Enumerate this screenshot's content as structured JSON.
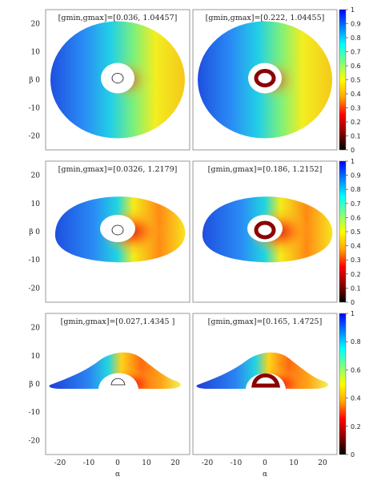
{
  "chart_data": {
    "type": "heatmap",
    "description_free": true,
    "shared_x_axis": {
      "label": "α",
      "ticks": [
        -20,
        -10,
        0,
        10,
        20
      ],
      "range": [
        -25,
        25
      ]
    },
    "shared_y_axis": {
      "label": "β",
      "ticks": [
        20,
        10,
        0,
        -10,
        -20
      ],
      "range": [
        -25,
        25
      ]
    },
    "colormap": [
      "#000000",
      "#8b0000",
      "#ff0000",
      "#ffa500",
      "#ffff00",
      "#7fff7f",
      "#00ffff",
      "#0080ff",
      "#0000ff"
    ],
    "rows": [
      {
        "colorbar_ticks": [
          "1",
          "0.9",
          "0.8",
          "0.7",
          "0.6",
          "0.5",
          "0.4",
          "0.3",
          "0.2",
          "0.1",
          "0"
        ],
        "colorbar_range": [
          0,
          1
        ],
        "panels": [
          {
            "annotation": "[gmin,gmax]=[0.036, 1.04457]",
            "gmin": 0.036,
            "gmax": 1.04457,
            "ring": false
          },
          {
            "annotation": "[gmin,gmax]=[0.222, 1.04455]",
            "gmin": 0.222,
            "gmax": 1.04455,
            "ring": true
          }
        ]
      },
      {
        "colorbar_ticks": [
          "1",
          "0.9",
          "0.8",
          "0.7",
          "0.6",
          "0.5",
          "0.4",
          "0.3",
          "0.2",
          "0.1",
          "0"
        ],
        "colorbar_range": [
          0,
          1
        ],
        "panels": [
          {
            "annotation": "[gmin,gmax]=[0.0326, 1.2179]",
            "gmin": 0.0326,
            "gmax": 1.2179,
            "ring": false
          },
          {
            "annotation": "[gmin,gmax]=[0.186, 1.2152]",
            "gmin": 0.186,
            "gmax": 1.2152,
            "ring": true
          }
        ]
      },
      {
        "colorbar_ticks": [
          "1",
          "0.8",
          "0.6",
          "0.4",
          "0.2",
          "0"
        ],
        "colorbar_range": [
          0,
          1
        ],
        "panels": [
          {
            "annotation": "[gmin,gmax]=[0.027,1.4345 ]",
            "gmin": 0.027,
            "gmax": 1.4345,
            "ring": false
          },
          {
            "annotation": "[gmin,gmax]=[0.165, 1.4725]",
            "gmin": 0.165,
            "gmax": 1.4725,
            "ring": true
          }
        ]
      }
    ]
  }
}
